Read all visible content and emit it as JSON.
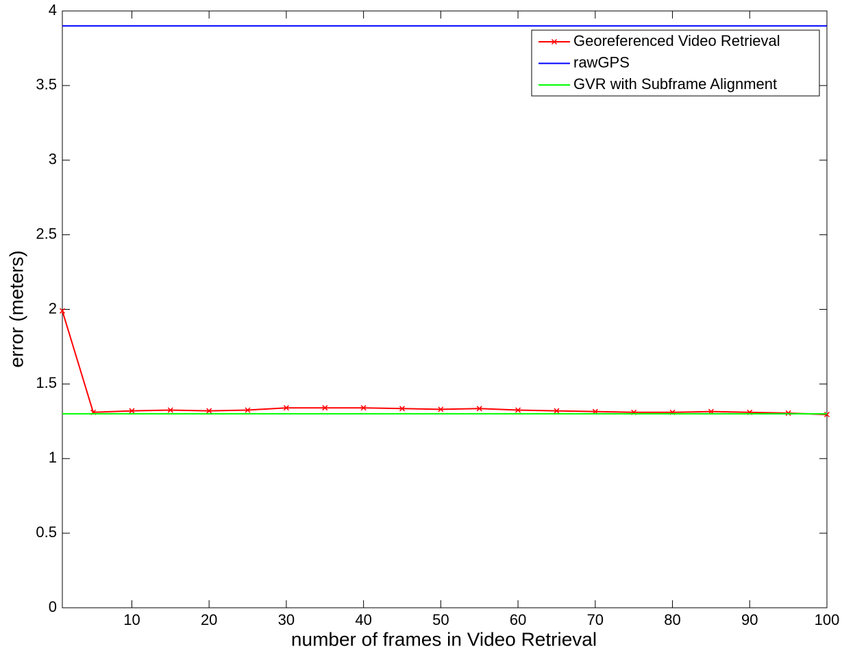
{
  "chart_data": {
    "type": "line",
    "xlabel": "number of frames in Video Retrieval",
    "ylabel": "error (meters)",
    "xlim": [
      1,
      100
    ],
    "ylim": [
      0,
      4
    ],
    "xticks": [
      10,
      20,
      30,
      40,
      50,
      60,
      70,
      80,
      90,
      100
    ],
    "yticks": [
      0,
      0.5,
      1,
      1.5,
      2,
      2.5,
      3,
      3.5,
      4
    ],
    "grid": false,
    "legend": "upper right",
    "series": [
      {
        "name": "Georeferenced Video Retrieval",
        "color": "#ff0000",
        "marker": "x",
        "x": [
          1,
          5,
          10,
          15,
          20,
          25,
          30,
          35,
          40,
          45,
          50,
          55,
          60,
          65,
          70,
          75,
          80,
          85,
          90,
          95,
          100
        ],
        "values": [
          1.99,
          1.31,
          1.32,
          1.325,
          1.32,
          1.325,
          1.34,
          1.34,
          1.34,
          1.335,
          1.33,
          1.335,
          1.325,
          1.32,
          1.315,
          1.31,
          1.31,
          1.315,
          1.31,
          1.305,
          1.295
        ]
      },
      {
        "name": "rawGPS",
        "color": "#0000ff",
        "x": [
          1,
          100
        ],
        "values": [
          3.9,
          3.9
        ]
      },
      {
        "name": "GVR with Subframe Alignment",
        "color": "#00ff00",
        "x": [
          1,
          100
        ],
        "values": [
          1.3,
          1.3
        ]
      }
    ]
  }
}
